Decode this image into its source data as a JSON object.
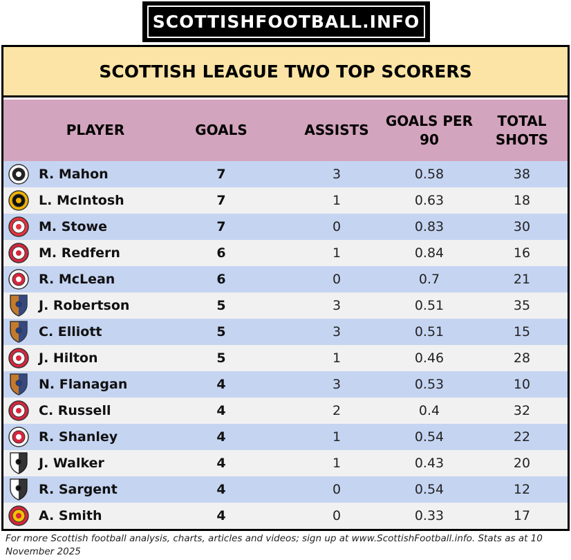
{
  "header": {
    "logo_text": "SCOTTISHFOOTBALL.INFO"
  },
  "table": {
    "title": "SCOTTISH LEAGUE TWO TOP SCORERS",
    "columns": {
      "player": "PLAYER",
      "goals": "GOALS",
      "assists": "ASSISTS",
      "goals_per_90": "GOALS PER 90",
      "total_shots": "TOTAL SHOTS"
    },
    "rows": [
      {
        "player": "R. Mahon",
        "goals": "7",
        "assists": "3",
        "goals_per_90": "0.58",
        "total_shots": "38",
        "badge": "club-crest-icon",
        "badge_colors": [
          "#ffffff",
          "#222222"
        ]
      },
      {
        "player": "L. McIntosh",
        "goals": "7",
        "assists": "1",
        "goals_per_90": "0.63",
        "total_shots": "18",
        "badge": "club-crest-icon",
        "badge_colors": [
          "#f2b300",
          "#111111"
        ]
      },
      {
        "player": "M. Stowe",
        "goals": "7",
        "assists": "0",
        "goals_per_90": "0.83",
        "total_shots": "30",
        "badge": "club-crest-icon",
        "badge_colors": [
          "#e8323c",
          "#ffffff"
        ]
      },
      {
        "player": "M. Redfern",
        "goals": "6",
        "assists": "1",
        "goals_per_90": "0.84",
        "total_shots": "16",
        "badge": "club-crest-icon",
        "badge_colors": [
          "#d7263d",
          "#ffffff"
        ]
      },
      {
        "player": "R. McLean",
        "goals": "6",
        "assists": "0",
        "goals_per_90": "0.7",
        "total_shots": "21",
        "badge": "club-crest-icon",
        "badge_colors": [
          "#ffffff",
          "#d7263d"
        ]
      },
      {
        "player": "J. Robertson",
        "goals": "5",
        "assists": "3",
        "goals_per_90": "0.51",
        "total_shots": "35",
        "badge": "club-shield-icon",
        "badge_colors": [
          "#c47a2c",
          "#1f3f8c"
        ]
      },
      {
        "player": "C. Elliott",
        "goals": "5",
        "assists": "3",
        "goals_per_90": "0.51",
        "total_shots": "15",
        "badge": "club-shield-icon",
        "badge_colors": [
          "#c47a2c",
          "#1f3f8c"
        ]
      },
      {
        "player": "J. Hilton",
        "goals": "5",
        "assists": "1",
        "goals_per_90": "0.46",
        "total_shots": "28",
        "badge": "club-crest-icon",
        "badge_colors": [
          "#d7263d",
          "#ffffff"
        ]
      },
      {
        "player": "N. Flanagan",
        "goals": "4",
        "assists": "3",
        "goals_per_90": "0.53",
        "total_shots": "10",
        "badge": "club-shield-icon",
        "badge_colors": [
          "#c47a2c",
          "#1f3f8c"
        ]
      },
      {
        "player": "C. Russell",
        "goals": "4",
        "assists": "2",
        "goals_per_90": "0.4",
        "total_shots": "32",
        "badge": "club-crest-icon",
        "badge_colors": [
          "#d7263d",
          "#ffffff"
        ]
      },
      {
        "player": "R. Shanley",
        "goals": "4",
        "assists": "1",
        "goals_per_90": "0.54",
        "total_shots": "22",
        "badge": "club-crest-icon",
        "badge_colors": [
          "#ffffff",
          "#d7263d"
        ]
      },
      {
        "player": "J. Walker",
        "goals": "4",
        "assists": "1",
        "goals_per_90": "0.43",
        "total_shots": "20",
        "badge": "club-shield-icon",
        "badge_colors": [
          "#ffffff",
          "#111111"
        ]
      },
      {
        "player": "R. Sargent",
        "goals": "4",
        "assists": "0",
        "goals_per_90": "0.54",
        "total_shots": "12",
        "badge": "club-shield-icon",
        "badge_colors": [
          "#ffffff",
          "#111111"
        ]
      },
      {
        "player": "A. Smith",
        "goals": "4",
        "assists": "0",
        "goals_per_90": "0.33",
        "total_shots": "17",
        "badge": "club-crest-icon",
        "badge_colors": [
          "#d7263d",
          "#f2c200"
        ]
      }
    ]
  },
  "footer": {
    "text": "For more Scottish football analysis, charts, articles and videos; sign up at www.ScottishFootball.info. Stats as at 10 November 2025"
  },
  "colors": {
    "title_bg": "#fbe4a5",
    "header_bg": "#d3a4bd",
    "row_odd": "#c5d4f1",
    "row_even": "#f1f1f1"
  }
}
